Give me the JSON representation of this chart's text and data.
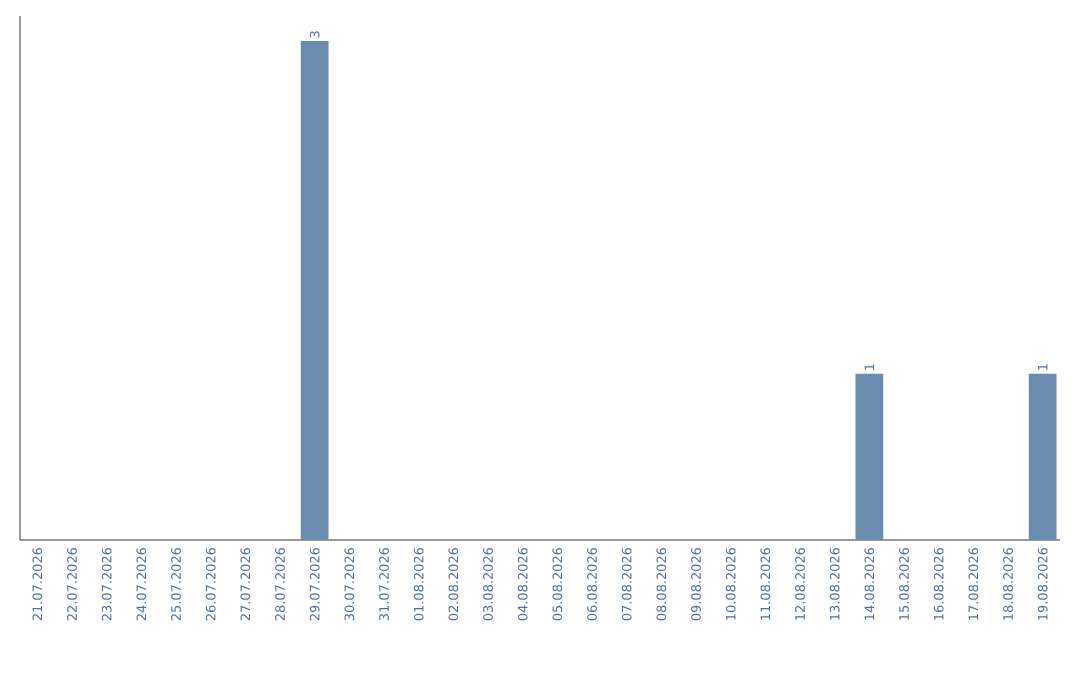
{
  "chart_data": {
    "type": "bar",
    "color": "#6b8cae",
    "categories": [
      "21.07.2026",
      "22.07.2026",
      "23.07.2026",
      "24.07.2026",
      "25.07.2026",
      "26.07.2026",
      "27.07.2026",
      "28.07.2026",
      "29.07.2026",
      "30.07.2026",
      "31.07.2026",
      "01.08.2026",
      "02.08.2026",
      "03.08.2026",
      "04.08.2026",
      "05.08.2026",
      "06.08.2026",
      "07.08.2026",
      "08.08.2026",
      "09.08.2026",
      "10.08.2026",
      "11.08.2026",
      "12.08.2026",
      "13.08.2026",
      "14.08.2026",
      "15.08.2026",
      "16.08.2026",
      "17.08.2026",
      "18.08.2026",
      "19.08.2026"
    ],
    "values": [
      0,
      0,
      0,
      0,
      0,
      0,
      0,
      0,
      3,
      0,
      0,
      0,
      0,
      0,
      0,
      0,
      0,
      0,
      0,
      0,
      0,
      0,
      0,
      0,
      1,
      0,
      0,
      0,
      0,
      1
    ],
    "value_labels": [
      null,
      null,
      null,
      null,
      null,
      null,
      null,
      null,
      "3",
      null,
      null,
      null,
      null,
      null,
      null,
      null,
      null,
      null,
      null,
      null,
      null,
      null,
      null,
      null,
      "1",
      null,
      null,
      null,
      null,
      "1"
    ],
    "tick_labels": "x"
  }
}
